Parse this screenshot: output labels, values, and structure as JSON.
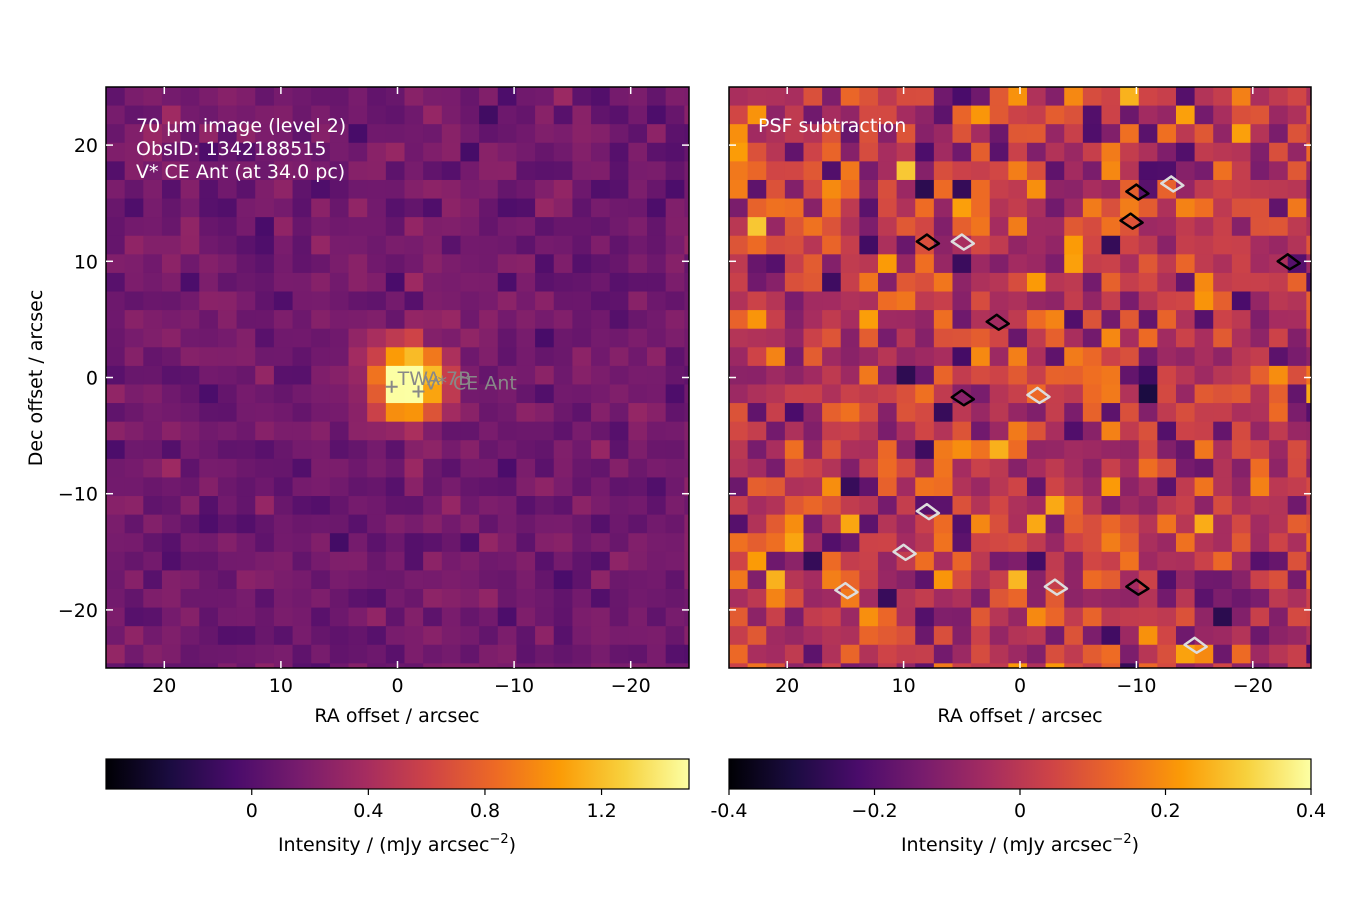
{
  "colors": {
    "colormap": [
      "#000004",
      "#1b0c41",
      "#4a0c6b",
      "#781c6d",
      "#a52c60",
      "#cf4446",
      "#ed6925",
      "#fb9b06",
      "#f7d13d",
      "#fcffa4"
    ],
    "contour_positive": "#000000",
    "contour_negative": "#dddddd",
    "marker": "#888888",
    "annotation": "#ffffff"
  },
  "chart_data": [
    {
      "type": "heatmap",
      "xlabel": "RA offset / arcsec",
      "ylabel": "Dec offset / arcsec",
      "xlim": [
        25,
        -25
      ],
      "ylim": [
        -25,
        25
      ],
      "xticks": [
        20,
        10,
        0,
        -10,
        -20
      ],
      "xtick_labels": [
        "20",
        "10",
        "0",
        "−10",
        "−20"
      ],
      "yticks": [
        20,
        10,
        0,
        -10,
        -20
      ],
      "ytick_labels": [
        "20",
        "10",
        "0",
        "−10",
        "−20"
      ],
      "pixel_size_arcsec": 1.6,
      "annotation": [
        "70 µm image (level 2)",
        "ObsID: 1342188515",
        "V* CE Ant (at 34.0 pc)"
      ],
      "markers": [
        {
          "label": "TWA 7B",
          "ra": 0.5,
          "dec": -0.8
        },
        {
          "label": "V* CE Ant",
          "ra": -1.8,
          "dec": -1.2
        }
      ],
      "source_peak": {
        "ra": -0.8,
        "dec": -0.3,
        "amplitude": 1.75,
        "fwhm_arcsec": 5.2
      },
      "background_level": 0.13,
      "noise_level": 0.11,
      "colorbar": {
        "label": "Intensity / (mJy arcsec",
        "label_exponent": "−2",
        "label_suffix": ")",
        "vmin": -0.5,
        "vmax": 1.5,
        "ticks": [
          0,
          0.4,
          0.8,
          1.2
        ],
        "tick_labels": [
          "0",
          "0.4",
          "0.8",
          "1.2"
        ]
      }
    },
    {
      "type": "heatmap",
      "xlabel": "RA offset / arcsec",
      "ylabel": "",
      "xlim": [
        25,
        -25
      ],
      "ylim": [
        -25,
        25
      ],
      "xticks": [
        20,
        10,
        0,
        -10,
        -20
      ],
      "xtick_labels": [
        "20",
        "10",
        "0",
        "−10",
        "−20"
      ],
      "yticks": [
        20,
        10,
        0,
        -10,
        -20
      ],
      "pixel_size_arcsec": 1.6,
      "annotation": [
        "PSF subtraction"
      ],
      "noise_level": 0.16,
      "contour_levels": [
        -0.3,
        0.3
      ],
      "positive_contours": [
        {
          "ra": -10,
          "dec": 16
        },
        {
          "ra": -23,
          "dec": 10
        },
        {
          "ra": 2,
          "dec": 4.8
        },
        {
          "ra": -10,
          "dec": -18
        },
        {
          "ra": -9.5,
          "dec": 13.5
        },
        {
          "ra": 8,
          "dec": 11.7
        },
        {
          "ra": 5,
          "dec": -1.7
        }
      ],
      "negative_contours": [
        {
          "ra": -13,
          "dec": 16.7
        },
        {
          "ra": 5,
          "dec": 11.7
        },
        {
          "ra": 8,
          "dec": -11.5
        },
        {
          "ra": 10,
          "dec": -15
        },
        {
          "ra": -3,
          "dec": -18
        },
        {
          "ra": -1.5,
          "dec": -1.5
        },
        {
          "ra": 15,
          "dec": -18.3
        },
        {
          "ra": -15,
          "dec": -23
        }
      ],
      "colorbar": {
        "label": "Intensity / (mJy arcsec",
        "label_exponent": "−2",
        "label_suffix": ")",
        "vmin": -0.4,
        "vmax": 0.4,
        "ticks": [
          -0.4,
          -0.2,
          0,
          0.2,
          0.4
        ],
        "tick_labels": [
          "-0.4",
          "−0.2",
          "0",
          "0.2",
          "0.4"
        ]
      }
    }
  ]
}
